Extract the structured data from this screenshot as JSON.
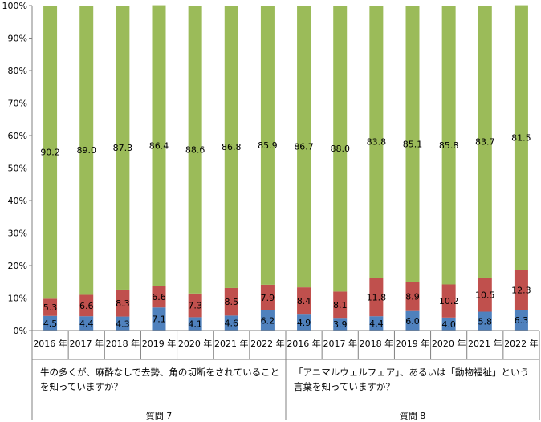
{
  "chart_data": {
    "type": "bar",
    "stacked": true,
    "categories": [
      "2016 年",
      "2017 年",
      "2018 年",
      "2019 年",
      "2020 年",
      "2021 年",
      "2022 年",
      "2016 年",
      "2017 年",
      "2018 年",
      "2019 年",
      "2020 年",
      "2021 年",
      "2022 年"
    ],
    "series": [
      {
        "color": "#4f81bd",
        "values": [
          4.5,
          4.4,
          4.3,
          7.1,
          4.1,
          4.6,
          6.2,
          4.9,
          3.9,
          4.4,
          6.0,
          4.0,
          5.8,
          6.3
        ]
      },
      {
        "color": "#c0504d",
        "values": [
          5.3,
          6.6,
          8.3,
          6.6,
          7.3,
          8.5,
          7.9,
          8.4,
          8.1,
          11.8,
          8.9,
          10.2,
          10.5,
          12.3
        ]
      },
      {
        "color": "#9bbb59",
        "values": [
          90.2,
          89.0,
          87.3,
          86.4,
          88.6,
          86.8,
          85.9,
          86.7,
          88.0,
          83.8,
          85.1,
          85.8,
          83.7,
          81.5
        ]
      }
    ],
    "labels": [
      [
        "4.5",
        "4.4",
        "4.3",
        "7.1",
        "4.1",
        "4.6",
        "6.2",
        "4.9",
        "3.9",
        "4.4",
        "6.0",
        "4.0",
        "5.8",
        "6.3"
      ],
      [
        "5.3",
        "6.6",
        "8.3",
        "6.6",
        "7.3",
        "8.5",
        "7.9",
        "8.4",
        "8.1",
        "11.8",
        "8.9",
        "10.2",
        "10.5",
        "12.3"
      ],
      [
        "90.2",
        "89.0",
        "87.3",
        "86.4",
        "88.6",
        "86.8",
        "85.9",
        "86.7",
        "88.0",
        "83.8",
        "85.1",
        "85.8",
        "83.7",
        "81.5"
      ]
    ],
    "yticks": [
      "0%",
      "10%",
      "20%",
      "30%",
      "40%",
      "50%",
      "60%",
      "70%",
      "80%",
      "90%",
      "100%"
    ],
    "ylim": [
      0,
      100
    ],
    "grid": false,
    "groups": [
      {
        "name": "質問 7",
        "question": "牛の多くが、麻酔なしで去勢、角の切断をされていることを知っていますか？",
        "from": 0,
        "to": 6
      },
      {
        "name": "質問 8",
        "question": "「アニマルウェルフェア」、あるいは「動物福祉」という言葉を知っていますか？",
        "from": 7,
        "to": 13
      }
    ]
  }
}
